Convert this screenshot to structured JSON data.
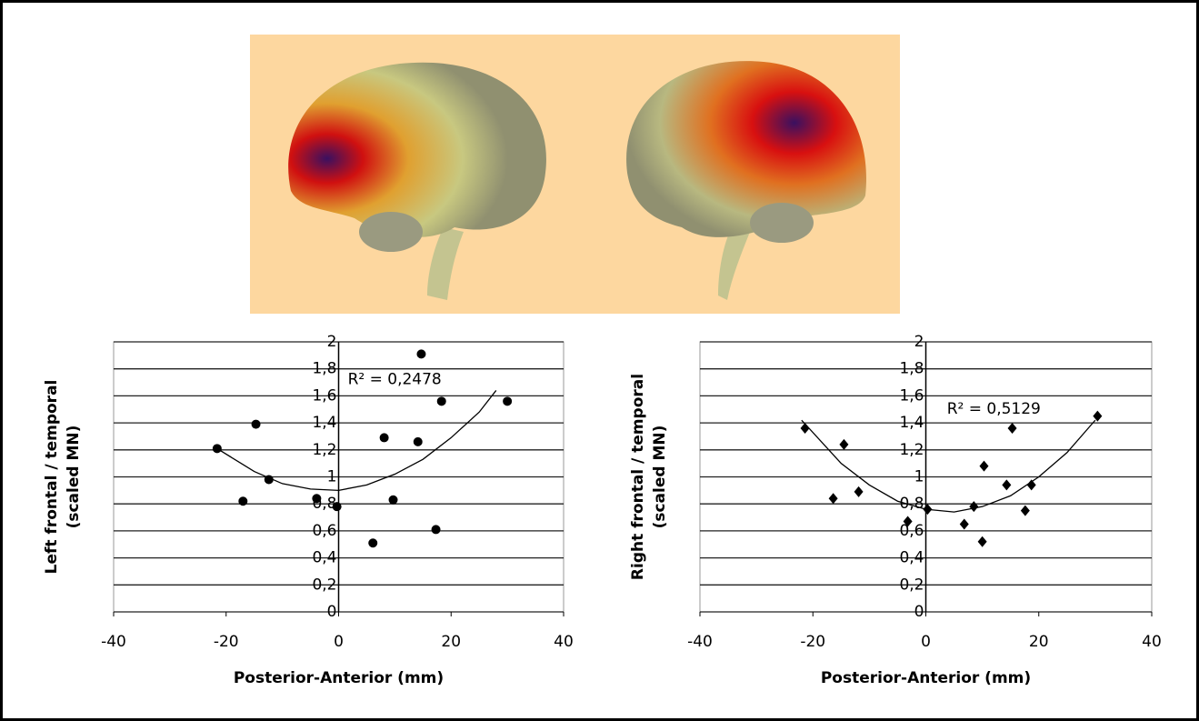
{
  "chart_data": [
    {
      "type": "scatter",
      "marker": "circle",
      "color": "#000000",
      "ylabel": [
        "Left frontal / temporal",
        "(scaled MN)"
      ],
      "xlabel": "Posterior-Anterior (mm)",
      "annotation": "R² = 0,2478",
      "xlim": [
        -40,
        40
      ],
      "xticks": [
        -40,
        -20,
        0,
        20,
        40
      ],
      "ylim": [
        0,
        2
      ],
      "yticks": [
        0,
        {
          "value": 0.2,
          "label": "0,2"
        },
        {
          "value": 0.4,
          "label": "0,4"
        },
        {
          "value": 0.6,
          "label": "0,6"
        },
        {
          "value": 0.8,
          "label": "0,8"
        },
        1,
        {
          "value": 1.2,
          "label": "1,2"
        },
        {
          "value": 1.4,
          "label": "1,4"
        },
        {
          "value": 1.6,
          "label": "1,6"
        },
        {
          "value": 1.8,
          "label": "1,8"
        },
        2
      ],
      "grid": true,
      "x": [
        -21.6,
        -14.7,
        -12.4,
        -17,
        -3.9,
        -0.3,
        6.1,
        8.1,
        9.7,
        14.7,
        14.1,
        18.3,
        17.3,
        30
      ],
      "values": [
        1.21,
        1.39,
        0.98,
        0.82,
        0.84,
        0.78,
        0.51,
        1.29,
        0.83,
        1.91,
        1.26,
        1.56,
        0.61,
        1.56
      ],
      "trendline": {
        "x": [
          -22,
          -15,
          -10,
          -5,
          0,
          5,
          10,
          15,
          20,
          25,
          28
        ],
        "values": [
          1.22,
          1.04,
          0.95,
          0.91,
          0.9,
          0.94,
          1.02,
          1.13,
          1.29,
          1.48,
          1.64
        ]
      }
    },
    {
      "type": "scatter",
      "marker": "diamond",
      "color": "#000000",
      "ylabel": [
        "Right frontal / temporal",
        "(scaled MN)"
      ],
      "xlabel": "Posterior-Anterior (mm)",
      "annotation": "R² = 0,5129",
      "xlim": [
        -40,
        40
      ],
      "xticks": [
        -40,
        -20,
        0,
        20,
        40
      ],
      "ylim": [
        0,
        2
      ],
      "yticks": [
        0,
        {
          "value": 0.2,
          "label": "0,2"
        },
        {
          "value": 0.4,
          "label": "0,4"
        },
        {
          "value": 0.6,
          "label": "0,6"
        },
        {
          "value": 0.8,
          "label": "0,8"
        },
        1,
        {
          "value": 1.2,
          "label": "1,2"
        },
        {
          "value": 1.4,
          "label": "1,4"
        },
        {
          "value": 1.6,
          "label": "1,6"
        },
        {
          "value": 1.8,
          "label": "1,8"
        },
        2
      ],
      "grid": true,
      "x": [
        -21.4,
        -14.5,
        -16.4,
        -11.9,
        -3.2,
        0.3,
        6.8,
        8.5,
        10.3,
        10,
        14.3,
        15.3,
        17.6,
        18.7,
        30.4
      ],
      "values": [
        1.36,
        1.24,
        0.84,
        0.89,
        0.67,
        0.76,
        0.65,
        0.78,
        1.08,
        0.52,
        0.94,
        1.36,
        0.75,
        0.94,
        1.45
      ],
      "trendline": {
        "x": [
          -22,
          -15,
          -10,
          -5,
          0,
          5,
          10,
          15,
          20,
          25,
          30
        ],
        "values": [
          1.42,
          1.1,
          0.94,
          0.82,
          0.76,
          0.74,
          0.78,
          0.86,
          1.0,
          1.18,
          1.42
        ]
      }
    }
  ]
}
